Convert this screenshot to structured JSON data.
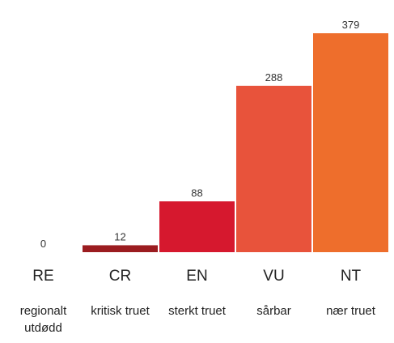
{
  "chart_data": {
    "type": "bar",
    "categories": [
      "RE",
      "CR",
      "EN",
      "VU",
      "NT"
    ],
    "descriptions": [
      "regionalt utdødd",
      "kritisk truet",
      "sterkt truet",
      "sårbar",
      "nær truet"
    ],
    "values": [
      0,
      12,
      88,
      288,
      379
    ],
    "colors": [
      "#8f1a1f",
      "#9b1c20",
      "#d6182e",
      "#e8533b",
      "#ee6e2c"
    ]
  }
}
